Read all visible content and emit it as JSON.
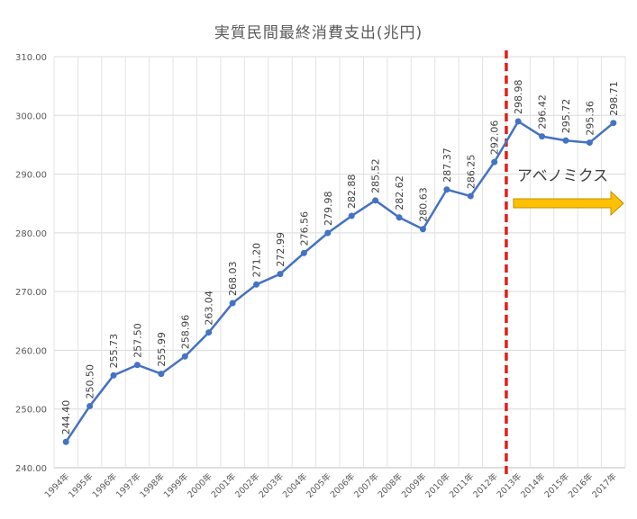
{
  "chart_data": {
    "type": "line",
    "title": "実質民間最終消費支出(兆円)",
    "xlabel": "",
    "ylabel": "",
    "categories": [
      "1994年",
      "1995年",
      "1996年",
      "1997年",
      "1998年",
      "1999年",
      "2000年",
      "2001年",
      "2002年",
      "2003年",
      "2004年",
      "2005年",
      "2006年",
      "2007年",
      "2008年",
      "2009年",
      "2010年",
      "2011年",
      "2012年",
      "2013年",
      "2014年",
      "2015年",
      "2016年",
      "2017年"
    ],
    "values": [
      244.4,
      250.5,
      255.73,
      257.5,
      255.99,
      258.96,
      263.04,
      268.03,
      271.2,
      272.99,
      276.56,
      279.98,
      282.88,
      285.52,
      282.62,
      280.63,
      287.37,
      286.25,
      292.06,
      298.98,
      296.42,
      295.72,
      295.36,
      298.71
    ],
    "data_labels": [
      "244.40",
      "250.50",
      "255.73",
      "257.50",
      "255.99",
      "258.96",
      "263.04",
      "268.03",
      "271.20",
      "272.99",
      "276.56",
      "279.98",
      "282.88",
      "285.52",
      "282.62",
      "280.63",
      "287.37",
      "286.25",
      "292.06",
      "298.98",
      "296.42",
      "295.72",
      "295.36",
      "298.71"
    ],
    "y_ticks": [
      "240.00",
      "250.00",
      "260.00",
      "270.00",
      "280.00",
      "290.00",
      "300.00",
      "310.00"
    ],
    "ylim": [
      240,
      310
    ],
    "grid": true,
    "series_color": "#4472C4",
    "annotation": {
      "text": "アベノミクス",
      "divider_between": [
        "2012年",
        "2013年"
      ],
      "divider_color": "#E0201B",
      "arrow_color": "#FFC000"
    }
  }
}
